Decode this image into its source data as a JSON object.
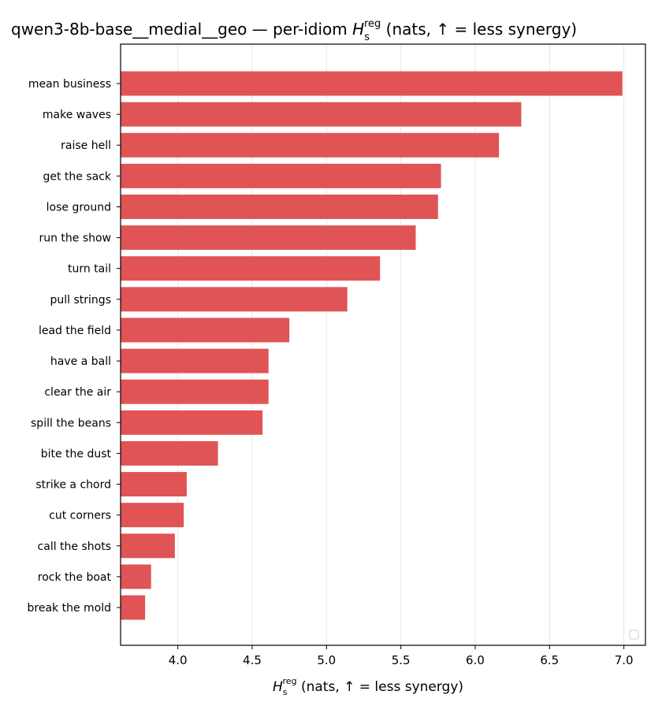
{
  "chart_data": {
    "type": "bar",
    "orientation": "horizontal",
    "title": {
      "prefix": "qwen3-8b-base__medial__geo — per-idiom ",
      "symbol": "H",
      "sub": "s",
      "sup": "reg",
      "suffix": " (nats, ↑ = less synergy)"
    },
    "xlabel": {
      "symbol": "H",
      "sub": "s",
      "sup": "reg",
      "suffix": " (nats, ↑ = less synergy)"
    },
    "categories": [
      "mean business",
      "make waves",
      "raise hell",
      "get the sack",
      "lose ground",
      "run the show",
      "turn tail",
      "pull strings",
      "lead the field",
      "have a ball",
      "clear the air",
      "spill the beans",
      "bite the dust",
      "strike a chord",
      "cut corners",
      "call the shots",
      "rock the boat",
      "break the mold"
    ],
    "values": [
      6.99,
      6.31,
      6.16,
      5.77,
      5.75,
      5.6,
      5.36,
      5.14,
      4.75,
      4.61,
      4.61,
      4.57,
      4.27,
      4.06,
      4.04,
      3.98,
      3.82,
      3.78
    ],
    "xlim": [
      3.615,
      7.145
    ],
    "xticks": [
      "4.0",
      "4.5",
      "5.0",
      "5.5",
      "6.0",
      "6.5",
      "7.0"
    ],
    "grid": "vertical",
    "legend": "empty, lower-right",
    "bar_color": "#e05455"
  }
}
